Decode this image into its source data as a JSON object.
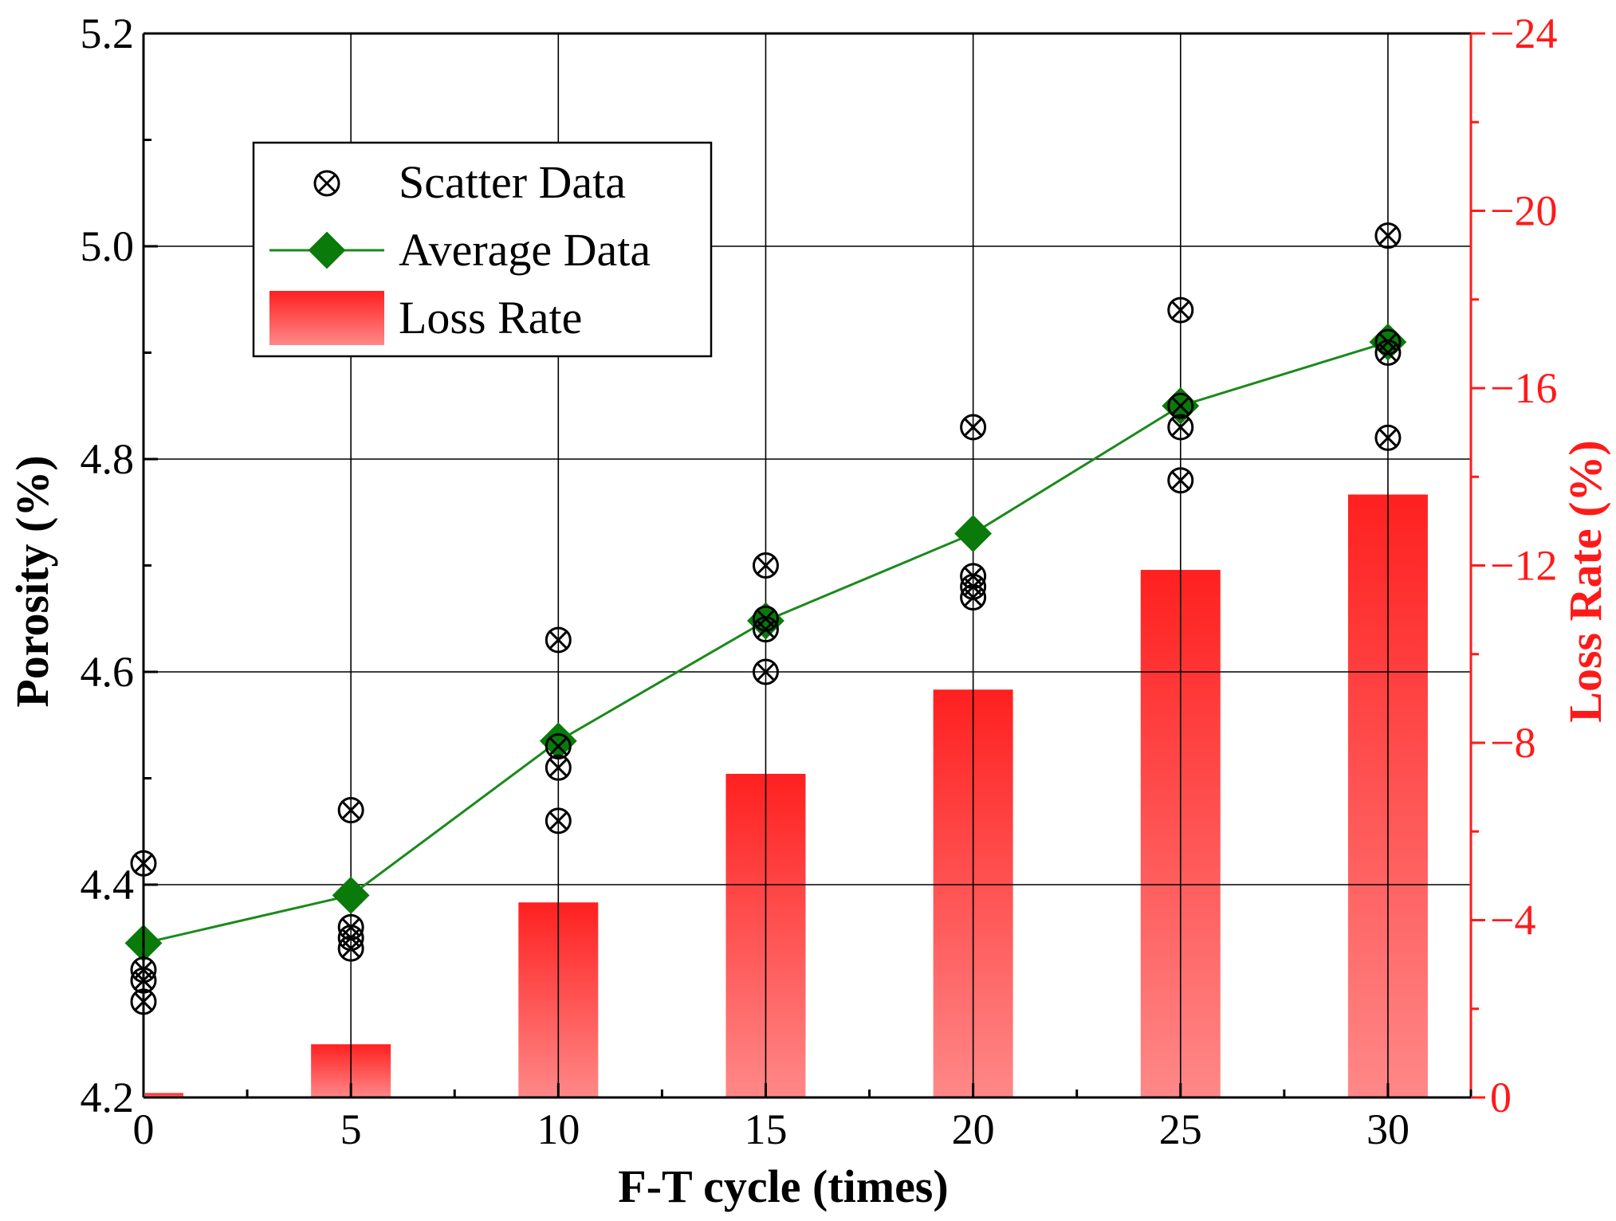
{
  "chart_data": {
    "type": "bar",
    "title": "",
    "xlabel": "F-T cycle (times)",
    "ylabel": "Porosity (%)",
    "y2label": "Loss Rate (%)",
    "x": [
      0,
      5,
      10,
      15,
      20,
      25,
      30
    ],
    "x_ticks": [
      "0",
      "5",
      "10",
      "15",
      "20",
      "25",
      "30"
    ],
    "xlim": [
      0,
      32
    ],
    "ylim": [
      4.2,
      5.2
    ],
    "y_ticks": [
      "4.2",
      "4.4",
      "4.6",
      "4.8",
      "5.0",
      "5.2"
    ],
    "y2lim": [
      0,
      -24
    ],
    "y2_ticks": [
      "0",
      "−4",
      "−8",
      "−12",
      "−16",
      "−20",
      "−24"
    ],
    "grid": true,
    "legend_position": "top-left",
    "series": [
      {
        "name": "Scatter Data",
        "type": "scatter",
        "axis": "left",
        "points": [
          [
            0,
            4.42
          ],
          [
            0,
            4.32
          ],
          [
            0,
            4.31
          ],
          [
            0,
            4.29
          ],
          [
            5,
            4.47
          ],
          [
            5,
            4.36
          ],
          [
            5,
            4.35
          ],
          [
            5,
            4.34
          ],
          [
            10,
            4.63
          ],
          [
            10,
            4.51
          ],
          [
            10,
            4.46
          ],
          [
            10,
            4.53
          ],
          [
            15,
            4.7
          ],
          [
            15,
            4.64
          ],
          [
            15,
            4.6
          ],
          [
            15,
            4.65
          ],
          [
            20,
            4.83
          ],
          [
            20,
            4.69
          ],
          [
            20,
            4.68
          ],
          [
            20,
            4.67
          ],
          [
            25,
            4.94
          ],
          [
            25,
            4.83
          ],
          [
            25,
            4.78
          ],
          [
            25,
            4.85
          ],
          [
            30,
            5.01
          ],
          [
            30,
            4.9
          ],
          [
            30,
            4.82
          ],
          [
            30,
            4.91
          ]
        ]
      },
      {
        "name": "Average Data",
        "type": "line",
        "axis": "left",
        "values": [
          4.345,
          4.39,
          4.535,
          4.648,
          4.73,
          4.85,
          4.91
        ]
      },
      {
        "name": "Loss Rate",
        "type": "bar",
        "axis": "right",
        "values": [
          -0.1,
          -1.2,
          -4.4,
          -7.3,
          -9.2,
          -11.9,
          -13.6
        ]
      }
    ]
  },
  "colors": {
    "scatter": "#000000",
    "line": "#1a8a1a",
    "marker": "#0a7a0a",
    "bar_top": "#ff2020",
    "bar_bottom": "#ff8888",
    "right_axis": "#ff1a1a",
    "grid": "#000000"
  },
  "legend": {
    "scatter_label": "Scatter Data",
    "line_label": "Average Data",
    "bar_label": "Loss Rate"
  }
}
